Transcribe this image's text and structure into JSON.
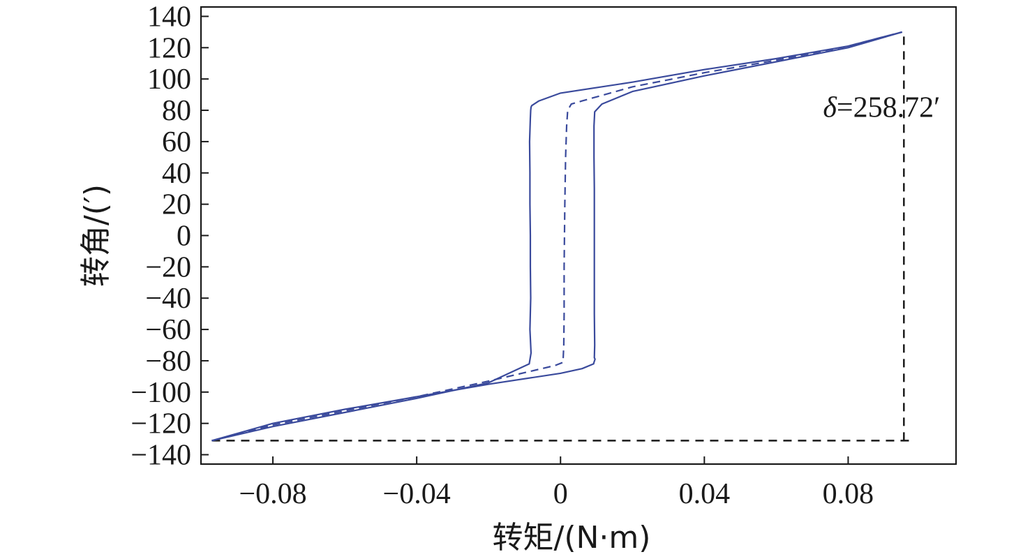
{
  "chart_data": {
    "type": "line",
    "xlabel": "转矩/(N·m)",
    "ylabel": "转角/(′)",
    "xlim": [
      -0.1,
      0.11
    ],
    "ylim": [
      -146,
      146
    ],
    "xticks": [
      -0.08,
      -0.04,
      0,
      0.04,
      0.08
    ],
    "xtick_labels": [
      "−0.08",
      "−0.04",
      "0",
      "0.04",
      "0.08"
    ],
    "yticks": [
      140,
      120,
      100,
      80,
      60,
      40,
      20,
      0,
      -20,
      -40,
      -60,
      -80,
      -100,
      -120,
      -140
    ],
    "ytick_labels": [
      "140",
      "120",
      "100",
      "80",
      "60",
      "40",
      "20",
      "0",
      "−20",
      "−40",
      "−60",
      "−80",
      "−100",
      "−120",
      "−140"
    ],
    "grid": false,
    "annotation": {
      "prefix": "δ",
      "text": "=258.72′",
      "x": 0.073,
      "y": 82
    },
    "colors": {
      "curve": "#3a4a9c",
      "reference": "#1a1a1a",
      "axes": "#1a1a1a"
    },
    "series": [
      {
        "style": "solid",
        "x": [
          -0.097,
          -0.08,
          -0.06,
          -0.04,
          -0.02,
          -0.0087,
          -0.0082,
          -0.0085,
          -0.0083,
          -0.0084,
          -0.0084,
          -0.0085,
          -0.0085,
          -0.0086,
          -0.0084,
          -0.0083,
          -0.0082,
          -0.008,
          -0.006,
          0.0,
          0.02,
          0.04,
          0.06,
          0.08,
          0.095
        ],
        "y": [
          -131,
          -122,
          -113,
          -104,
          -94,
          -82,
          -75,
          -60,
          -40,
          -20,
          0,
          20,
          40,
          60,
          75,
          80,
          82,
          83,
          86,
          91,
          98,
          106,
          113,
          121,
          130
        ]
      },
      {
        "style": "solid",
        "x": [
          0.095,
          0.08,
          0.06,
          0.04,
          0.02,
          0.0115,
          0.0095,
          0.0093,
          0.0093,
          0.0094,
          0.0094,
          0.0094,
          0.0094,
          0.0095,
          0.0094,
          0.0096,
          0.0093,
          0.0092,
          0.006,
          0.0,
          -0.02,
          -0.04,
          -0.06,
          -0.08,
          -0.097
        ],
        "y": [
          130,
          120,
          111,
          102,
          92,
          84,
          79,
          70,
          50,
          30,
          0,
          -30,
          -50,
          -70,
          -78,
          -79,
          -81,
          -82,
          -85,
          -88,
          -95,
          -103,
          -111,
          -120,
          -131
        ]
      },
      {
        "style": "dashed",
        "x": [
          -0.097,
          -0.08,
          -0.06,
          -0.04,
          -0.02,
          -0.0015,
          0.0007,
          0.0009,
          0.001,
          0.001,
          0.0011,
          0.0012,
          0.0014,
          0.0017,
          0.002,
          0.003,
          0.006,
          0.02,
          0.04,
          0.06,
          0.08,
          0.095
        ],
        "y": [
          -131,
          -121,
          -112,
          -103,
          -93,
          -83,
          -81,
          -70,
          -50,
          -20,
          0,
          20,
          50,
          70,
          80,
          84,
          86,
          95,
          104,
          112,
          121,
          130
        ]
      }
    ],
    "reference_lines": [
      {
        "style": "dashed",
        "x": [
          -0.097,
          0.097
        ],
        "y": [
          -131,
          -131
        ]
      },
      {
        "style": "dashed",
        "x": [
          0.0955,
          0.0955
        ],
        "y": [
          -131,
          131
        ]
      }
    ]
  }
}
